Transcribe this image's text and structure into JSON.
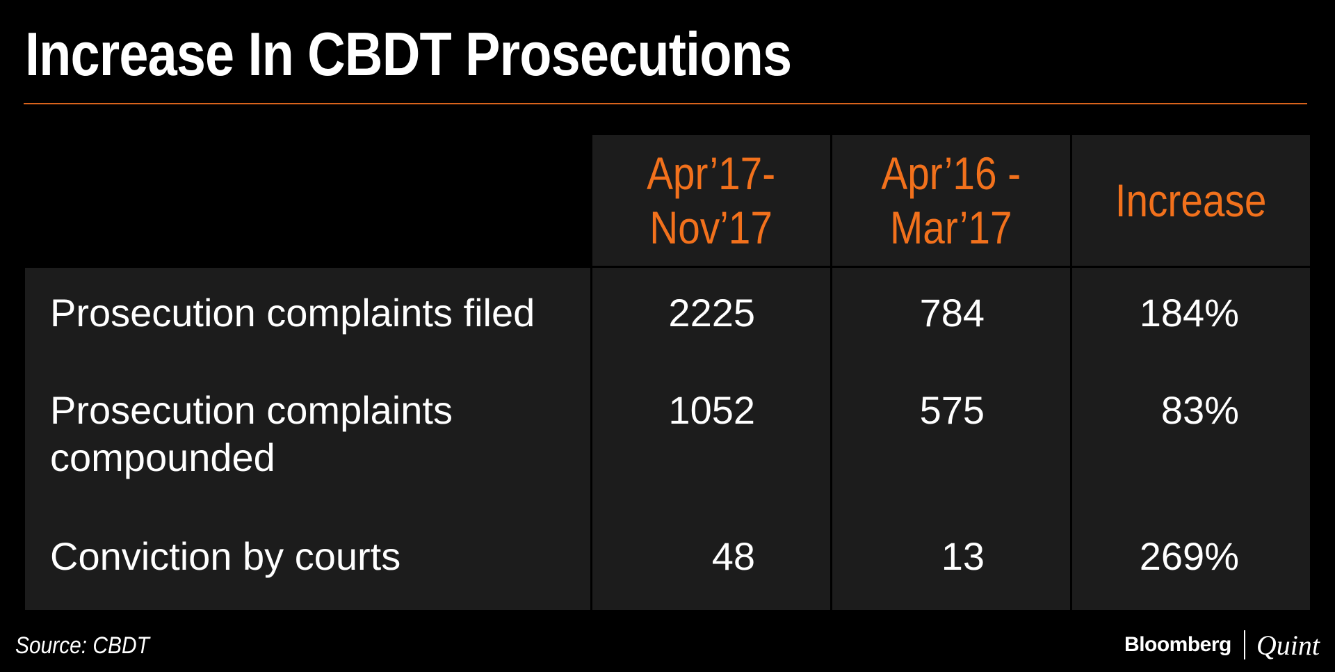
{
  "chart_data": {
    "type": "table",
    "title": "Increase In CBDT Prosecutions",
    "columns": [
      "",
      "Apr’17-\nNov’17",
      "Apr’16 -\nMar’17",
      "Increase"
    ],
    "rows": [
      {
        "label": "Prosecution complaints filed",
        "apr17_nov17": "2225",
        "apr16_mar17": "784",
        "increase": "184%"
      },
      {
        "label": "Prosecution complaints compounded",
        "apr17_nov17": "1052",
        "apr16_mar17": "575",
        "increase": "83%"
      },
      {
        "label": "Conviction by courts",
        "apr17_nov17": "48",
        "apr16_mar17": "13",
        "increase": "269%"
      }
    ],
    "source": "Source: CBDT"
  },
  "branding": {
    "logo_left": "Bloomberg",
    "logo_right": "Quint"
  },
  "colors": {
    "background": "#000000",
    "cell_background": "#1c1c1c",
    "header_text": "#f2711c",
    "rule": "#d9631c",
    "body_text": "#ffffff"
  }
}
